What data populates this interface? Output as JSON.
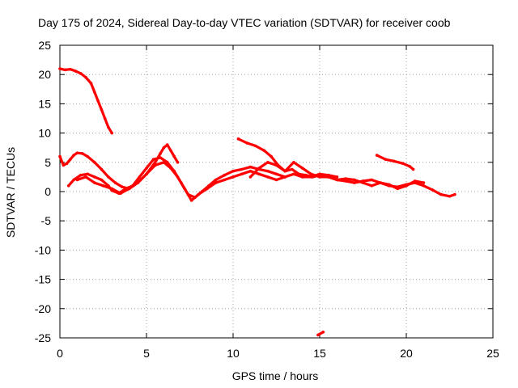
{
  "chart_data": {
    "type": "line",
    "title": "Day 175 of 2024, Sidereal Day-to-day VTEC variation (SDTVAR) for receiver coob",
    "xlabel": "GPS time / hours",
    "ylabel": "SDTVAR / TECUs",
    "xlim": [
      0,
      25
    ],
    "ylim": [
      -25,
      25
    ],
    "xticks": [
      0,
      5,
      10,
      15,
      20,
      25
    ],
    "yticks": [
      25,
      20,
      15,
      10,
      5,
      0,
      -5,
      -10,
      -15,
      -20,
      -25
    ],
    "grid": true,
    "legend": "none",
    "series_color": "#ff0000",
    "series": [
      {
        "name": "arc-1",
        "x": [
          0.0,
          0.3,
          0.6,
          0.9,
          1.2,
          1.5,
          1.8,
          2.0,
          2.2,
          2.4,
          2.6,
          2.8,
          3.0
        ],
        "y": [
          21.0,
          20.8,
          20.9,
          20.6,
          20.2,
          19.5,
          18.5,
          17.0,
          15.5,
          14.0,
          12.5,
          11.0,
          10.0
        ]
      },
      {
        "name": "arc-2",
        "x": [
          0.0,
          0.2,
          0.4,
          0.6,
          0.8,
          1.0,
          1.3,
          1.6,
          2.0,
          2.4,
          2.8,
          3.2,
          3.6,
          4.0,
          4.5,
          5.0,
          5.5,
          5.8,
          6.0,
          6.2,
          6.4,
          6.6,
          6.8
        ],
        "y": [
          6.0,
          4.5,
          4.8,
          5.5,
          6.2,
          6.6,
          6.5,
          6.0,
          5.0,
          3.8,
          2.5,
          1.5,
          0.8,
          0.5,
          1.5,
          3.0,
          5.0,
          6.5,
          7.5,
          8.0,
          7.0,
          6.0,
          5.0
        ]
      },
      {
        "name": "arc-3",
        "x": [
          0.5,
          0.8,
          1.2,
          1.6,
          2.0,
          2.4,
          2.8,
          3.0,
          3.4,
          3.8,
          4.2,
          4.6,
          5.0,
          5.4,
          5.8,
          6.2,
          6.6,
          7.0,
          7.4,
          7.8,
          8.2,
          8.6,
          9.0,
          9.5,
          10.0,
          10.5,
          11.0,
          11.5,
          12.0,
          12.5,
          13.0
        ],
        "y": [
          1.0,
          2.0,
          2.8,
          3.0,
          2.5,
          2.0,
          1.0,
          0.2,
          -0.3,
          0.5,
          1.0,
          2.5,
          4.0,
          5.5,
          5.8,
          5.0,
          3.5,
          1.5,
          -0.5,
          -1.0,
          0.0,
          1.0,
          2.0,
          2.8,
          3.5,
          3.8,
          4.2,
          3.8,
          3.5,
          3.0,
          2.5
        ]
      },
      {
        "name": "arc-4",
        "x": [
          1.0,
          1.5,
          2.0,
          2.5,
          3.0,
          3.5,
          4.0,
          4.5,
          5.0,
          5.5,
          6.0,
          6.4,
          6.8,
          7.2,
          7.6,
          8.0,
          8.5,
          9.0,
          9.5,
          10.0,
          10.5,
          11.0,
          11.5,
          12.0,
          12.5,
          13.0,
          13.5,
          14.0,
          14.5,
          15.0,
          15.5,
          16.0
        ],
        "y": [
          2.0,
          2.5,
          1.5,
          1.0,
          0.5,
          -0.3,
          0.5,
          1.5,
          3.0,
          4.5,
          5.0,
          4.0,
          2.5,
          0.5,
          -1.5,
          -0.5,
          0.5,
          1.5,
          2.0,
          2.5,
          3.0,
          3.5,
          3.0,
          2.5,
          2.0,
          2.5,
          3.0,
          2.5,
          2.5,
          3.0,
          2.8,
          2.5
        ]
      },
      {
        "name": "arc-5",
        "x": [
          10.3,
          10.8,
          11.3,
          11.8,
          12.2,
          12.6,
          13.0,
          13.4,
          13.8,
          14.2,
          14.6,
          15.0,
          15.5,
          16.0,
          16.5,
          17.0,
          17.5,
          18.0,
          18.5,
          19.0,
          19.5,
          20.0,
          20.5,
          21.0,
          21.5,
          22.0,
          22.5,
          22.8
        ],
        "y": [
          9.0,
          8.3,
          7.8,
          7.0,
          6.0,
          4.5,
          3.5,
          3.8,
          3.0,
          2.8,
          2.5,
          2.8,
          2.5,
          2.0,
          1.8,
          1.5,
          1.8,
          2.0,
          1.5,
          1.0,
          0.8,
          1.2,
          1.5,
          1.0,
          0.3,
          -0.5,
          -0.8,
          -0.5
        ]
      },
      {
        "name": "arc-6",
        "x": [
          11.0,
          11.5,
          12.0,
          12.5,
          13.0,
          13.5,
          14.0,
          14.5,
          15.0,
          15.5,
          16.0,
          16.5,
          17.0,
          17.5,
          18.0,
          18.5,
          19.0,
          19.5,
          20.0,
          20.5,
          21.0
        ],
        "y": [
          2.5,
          4.0,
          5.0,
          4.5,
          3.5,
          5.0,
          4.0,
          3.0,
          2.5,
          2.5,
          2.0,
          2.2,
          2.0,
          1.5,
          1.0,
          1.5,
          1.2,
          0.5,
          1.0,
          1.8,
          1.5
        ]
      },
      {
        "name": "arc-7",
        "x": [
          18.3,
          18.8,
          19.3,
          19.8,
          20.2,
          20.4
        ],
        "y": [
          6.2,
          5.5,
          5.2,
          4.8,
          4.3,
          3.8
        ]
      },
      {
        "name": "arc-8",
        "x": [
          14.9,
          15.2
        ],
        "y": [
          -24.5,
          -24.0
        ]
      }
    ]
  }
}
